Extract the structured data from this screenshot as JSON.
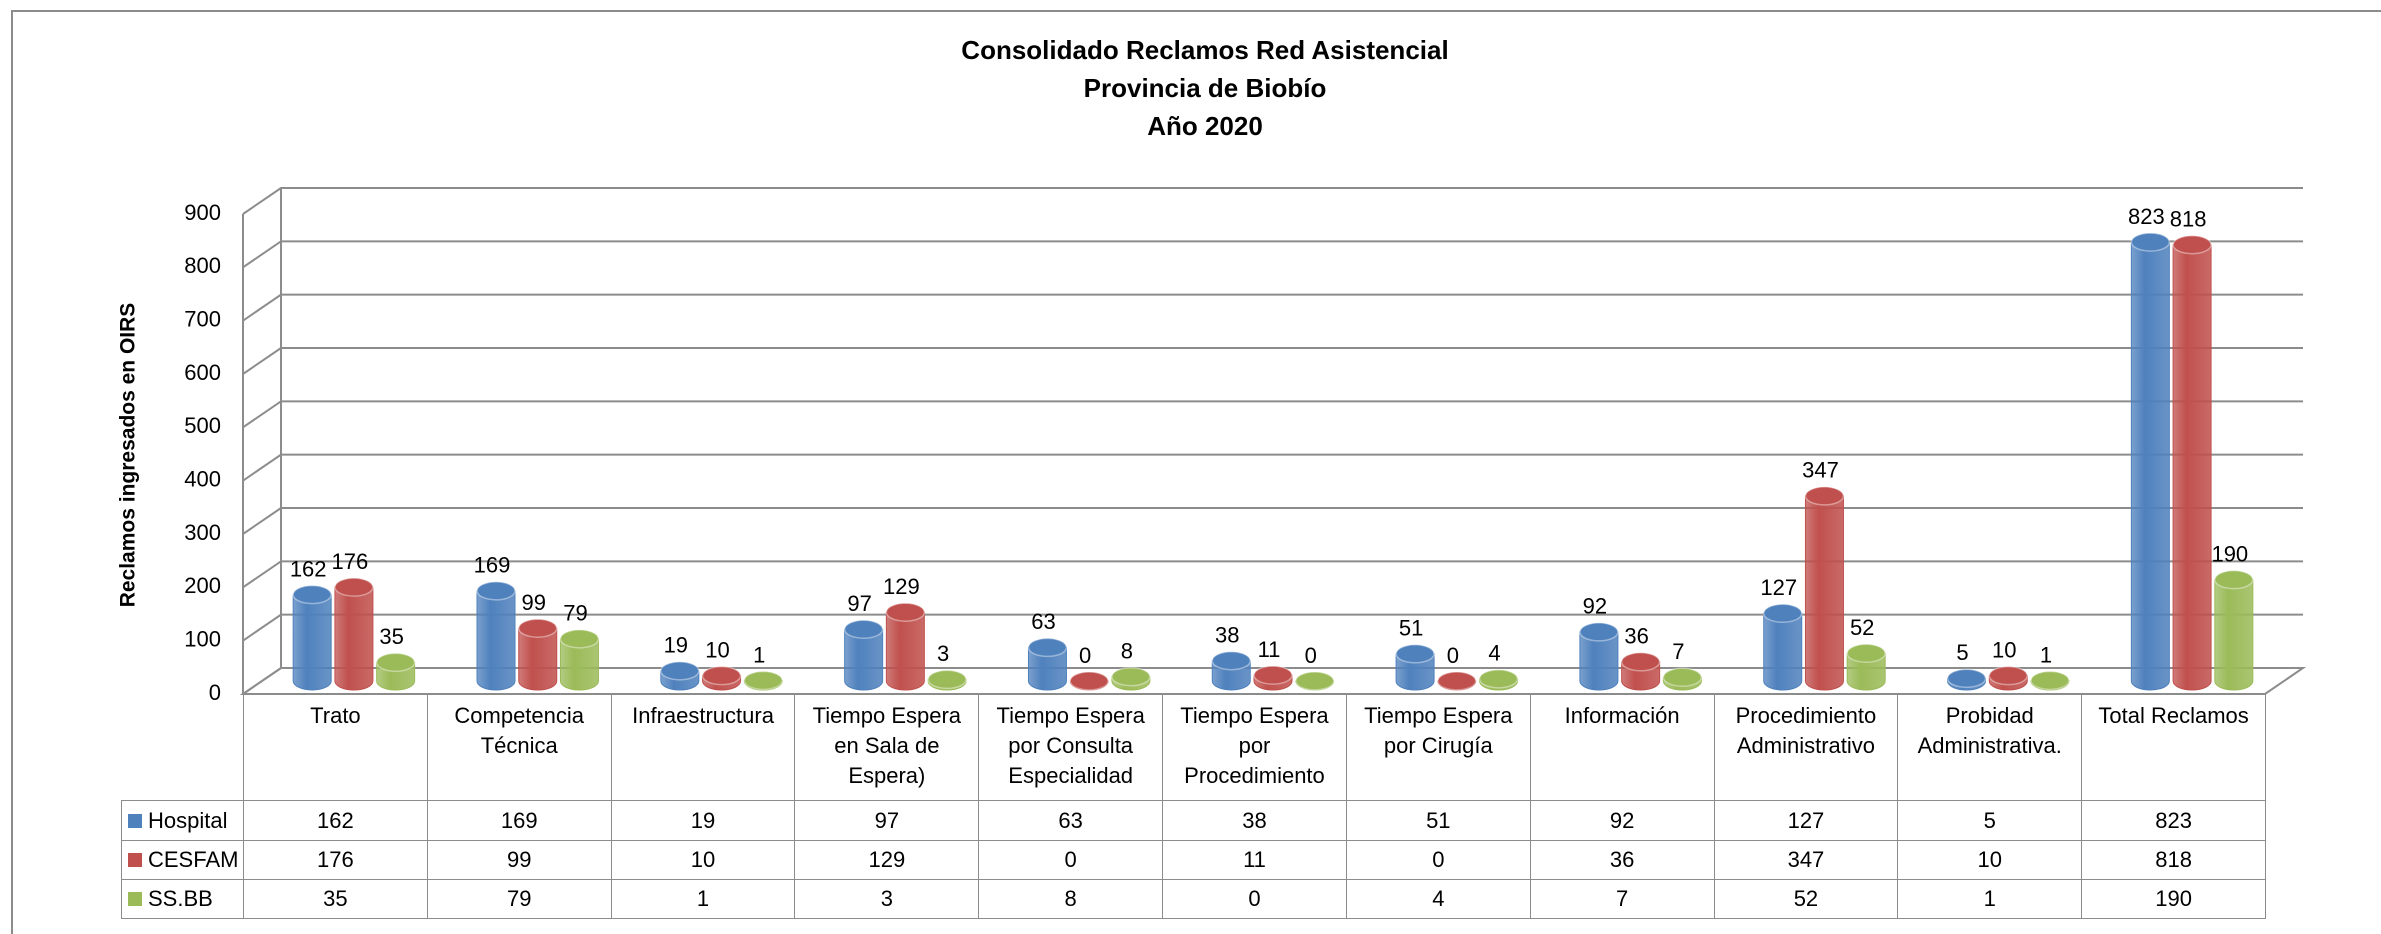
{
  "chart_data": {
    "type": "bar3d",
    "title": [
      "Consolidado  Reclamos Red Asistencial",
      "Provincia de Biobío",
      "Año 2020"
    ],
    "y_label": "Reclamos ingresados en OIRS",
    "categories": [
      "Trato",
      "Competencia Técnica",
      "Infraestructura",
      "Tiempo Espera en Sala de Espera)",
      "Tiempo Espera por Consulta Especialidad",
      "Tiempo Espera por Procedimiento",
      "Tiempo Espera por Cirugía",
      "Información",
      "Procedimiento Administrativo",
      "Probidad Administrativa.",
      "Total Reclamos"
    ],
    "series": [
      {
        "name": "Hospital",
        "color": "#4f81bd",
        "values": [
          162,
          169,
          19,
          97,
          63,
          38,
          51,
          92,
          127,
          5,
          823
        ]
      },
      {
        "name": "CESFAM",
        "color": "#c0504d",
        "values": [
          176,
          99,
          10,
          129,
          0,
          11,
          0,
          36,
          347,
          10,
          818
        ]
      },
      {
        "name": "SS.BB",
        "color": "#9bbb59",
        "values": [
          35,
          79,
          1,
          3,
          8,
          0,
          4,
          7,
          52,
          1,
          190
        ]
      }
    ],
    "ylim": [
      0,
      900
    ],
    "yticks": [
      0,
      100,
      200,
      300,
      400,
      500,
      600,
      700,
      800,
      900
    ],
    "grid": true,
    "data_table": true
  }
}
